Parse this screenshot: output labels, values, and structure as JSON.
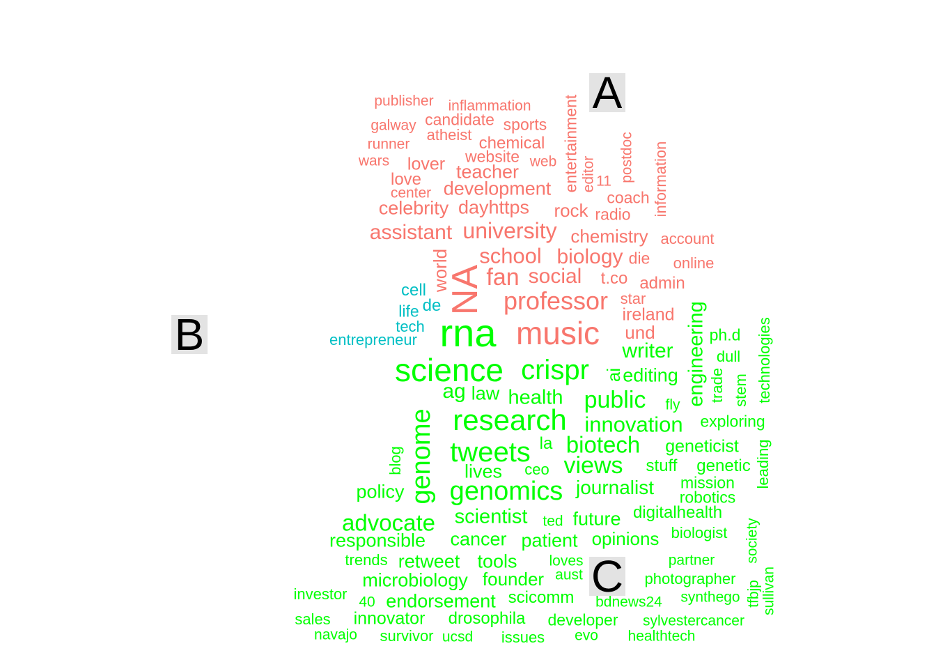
{
  "colors": {
    "A": "#f8766d",
    "B": "#00bfc4",
    "C": "#00ff00"
  },
  "labels": [
    {
      "text": "A"
    },
    {
      "text": "B"
    },
    {
      "text": "C"
    }
  ],
  "groups": {
    "A": [
      "publisher",
      "inflammation",
      "candidate",
      "sports",
      "galway",
      "atheist",
      "chemical",
      "runner",
      "website",
      "web",
      "wars",
      "lover",
      "teacher",
      "love",
      "center",
      "development",
      "celebrity",
      "dayhttps",
      "rock",
      "radio",
      "coach",
      "assistant",
      "university",
      "chemistry",
      "account",
      "school",
      "biology",
      "die",
      "online",
      "fan",
      "social",
      "t.co",
      "admin",
      "professor",
      "star",
      "ireland",
      "music",
      "und",
      "NA",
      "world",
      "entertainment",
      "editor",
      "11",
      "postdoc",
      "information"
    ],
    "B": [
      "cell",
      "de",
      "life",
      "tech",
      "entrepreneur"
    ],
    "C": [
      "rna",
      "writer",
      "science",
      "crispr",
      "ai",
      "editing",
      "engineering",
      "ph.d",
      "dull",
      "ag",
      "law",
      "health",
      "public",
      "trade",
      "stem",
      "technologies",
      "fly",
      "genome",
      "research",
      "innovation",
      "exploring",
      "blog",
      "la",
      "biotech",
      "geneticist",
      "tweets",
      "lives",
      "ceo",
      "views",
      "stuff",
      "genetic",
      "leading",
      "mission",
      "policy",
      "genomics",
      "journalist",
      "robotics",
      "advocate",
      "scientist",
      "ted",
      "future",
      "digitalhealth",
      "responsible",
      "cancer",
      "patient",
      "opinions",
      "biologist",
      "society",
      "trends",
      "retweet",
      "tools",
      "loves",
      "partner",
      "microbiology",
      "founder",
      "aust",
      "photographer",
      "sullivan",
      "investor",
      "40",
      "endorsement",
      "scicomm",
      "bdnews24",
      "synthego",
      "tfbjp",
      "sales",
      "innovator",
      "drosophila",
      "developer",
      "sylvestercancer",
      "navajo",
      "survivor",
      "ucsd",
      "issues",
      "evo",
      "healthtech"
    ]
  }
}
